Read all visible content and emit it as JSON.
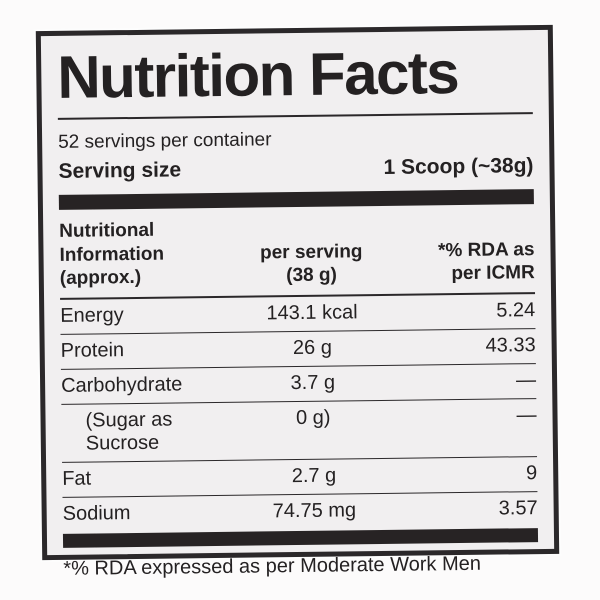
{
  "colors": {
    "page_bg": "#fcfbfb",
    "label_bg": "#f1eff0",
    "ink": "#242122",
    "bar": "#272324",
    "border": "#2b282a"
  },
  "label": {
    "title": "Nutrition Facts",
    "servings_per_container": "52 servings per container",
    "serving_size": {
      "label": "Serving size",
      "value": "1 Scoop (~38g)"
    },
    "table": {
      "header": {
        "col1_line1": "Nutritional Information",
        "col1_line2": "(approx.)",
        "col2_line1": "per serving",
        "col2_line2": "(38 g)",
        "col3_line1": "*% RDA as",
        "col3_line2": "per ICMR"
      },
      "rows": [
        {
          "name": "Energy",
          "per_serving": "143.1 kcal",
          "rda": "5.24"
        },
        {
          "name": "Protein",
          "per_serving": "26 g",
          "rda": "43.33"
        },
        {
          "name": "Carbohydrate",
          "per_serving": "3.7 g",
          "rda": "—"
        },
        {
          "name": "(Sugar as Sucrose",
          "per_serving": "0 g)",
          "rda": "—"
        },
        {
          "name": "Fat",
          "per_serving": "2.7 g",
          "rda": "9"
        },
        {
          "name": "Sodium",
          "per_serving": "74.75 mg",
          "rda": "3.57"
        }
      ]
    },
    "footnote": "*% RDA expressed as per Moderate Work Men"
  }
}
